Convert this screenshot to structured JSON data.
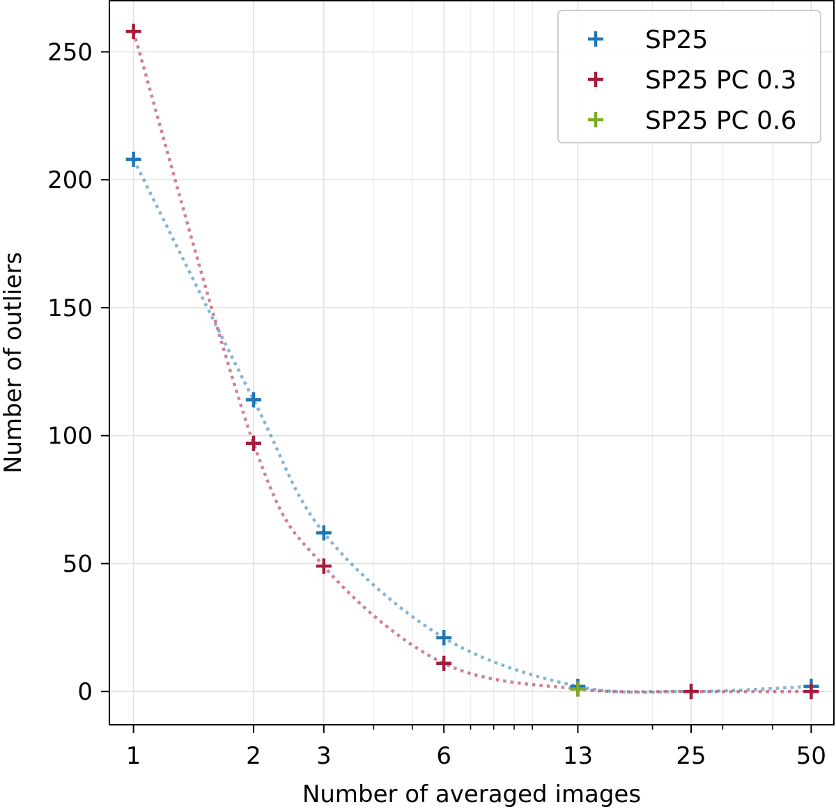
{
  "chart_data": {
    "type": "scatter",
    "title": "",
    "xlabel": "Number of averaged images",
    "ylabel": "Number of outliers",
    "xscale": "log",
    "xlim": [
      0.87,
      57
    ],
    "ylim": [
      -13,
      270
    ],
    "xticks": [
      1,
      2,
      3,
      6,
      13,
      25,
      50
    ],
    "xtick_labels": [
      "1",
      "2",
      "3",
      "6",
      "13",
      "25",
      "50"
    ],
    "yticks": [
      0,
      50,
      100,
      150,
      200,
      250
    ],
    "ytick_labels": [
      "0",
      "50",
      "100",
      "150",
      "200",
      "250"
    ],
    "grid": true,
    "legend_position": "top-right",
    "series": [
      {
        "name": "SP25",
        "color": "#1f77b4",
        "marker": "plus",
        "line": "dotted",
        "points": [
          [
            1,
            208
          ],
          [
            2,
            114
          ],
          [
            3,
            62
          ],
          [
            6,
            21
          ],
          [
            13,
            2
          ],
          [
            25,
            0
          ],
          [
            50,
            2
          ]
        ]
      },
      {
        "name": "SP25 PC 0.3",
        "color": "#a51c3a",
        "marker": "plus",
        "line": "dotted",
        "points": [
          [
            1,
            258
          ],
          [
            2,
            97
          ],
          [
            3,
            49
          ],
          [
            6,
            11
          ],
          [
            13,
            1
          ],
          [
            25,
            0
          ],
          [
            50,
            0
          ]
        ]
      },
      {
        "name": "SP25 PC 0.6",
        "color": "#7aad27",
        "marker": "plus",
        "line": "none",
        "points": [
          [
            13,
            1
          ]
        ]
      }
    ]
  }
}
